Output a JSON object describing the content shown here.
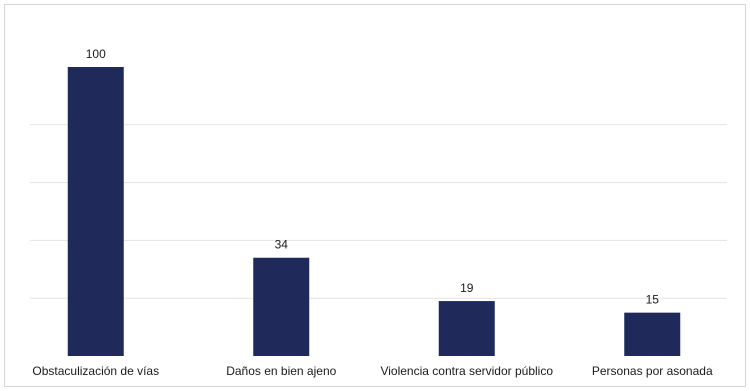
{
  "chart_data": {
    "type": "bar",
    "title": "",
    "xlabel": "",
    "ylabel": "",
    "categories": [
      "Obstaculización de vías",
      "Daños en bien ajeno",
      "Violencia contra servidor público",
      "Personas por asonada"
    ],
    "values": [
      100,
      34,
      19,
      15
    ],
    "value_labels": [
      "100",
      "34",
      "19",
      "15"
    ],
    "ylim": [
      0,
      100
    ],
    "grid": true,
    "legend": "none",
    "bar_color": "#1f2a5a",
    "grid_color": "#e3e3e3"
  }
}
